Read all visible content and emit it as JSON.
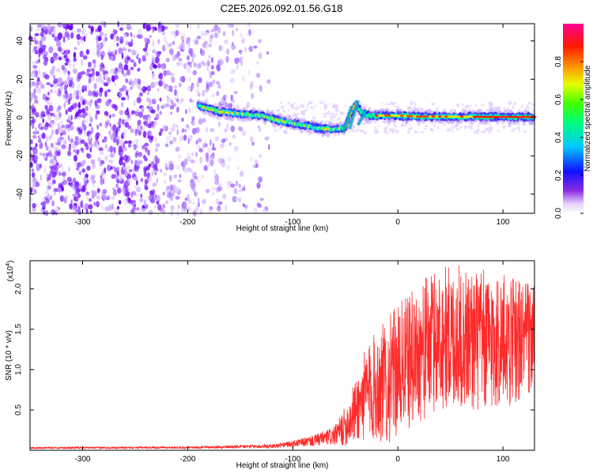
{
  "page": {
    "title": "C2E5.2026.092.01.56.G18"
  },
  "colors": {
    "snr_line": "#ff2a2a",
    "background_scatter": "#7a1fff",
    "ridge": "#ff0000"
  },
  "chart_data": [
    {
      "type": "heatmap",
      "title": "C2E5.2026.092.01.56.G18",
      "xlabel": "Height of straight line (km)",
      "ylabel": "Frequency (Hz)",
      "xlim": [
        -350,
        130
      ],
      "ylim": [
        -50,
        49
      ],
      "x_ticks": [
        -300,
        -200,
        -100,
        0,
        100
      ],
      "x_tick_labels": [
        "-300",
        "-200",
        "-100",
        "0",
        "100"
      ],
      "y_ticks": [
        -40,
        -20,
        0,
        20,
        40
      ],
      "y_tick_labels": [
        "-40",
        "-20",
        "0",
        "20",
        "40"
      ],
      "colorbar": {
        "label": "Normalized spectral amplitude",
        "range": [
          0.0,
          1.0
        ],
        "ticks": [
          0.0,
          0.2,
          0.4,
          0.6,
          0.8
        ],
        "tick_labels": [
          "0.0",
          "0.2",
          "0.4",
          "0.6",
          "0.8"
        ]
      },
      "ridge": {
        "description": "Doppler frequency ridge",
        "x": [
          -190,
          -170,
          -150,
          -130,
          -110,
          -100,
          -90,
          -80,
          -70,
          -60,
          -50,
          -45,
          -40,
          -35,
          -30,
          -20,
          0,
          20,
          50,
          100,
          130
        ],
        "y": [
          6,
          3,
          2,
          1,
          -2,
          -3,
          -4,
          -5,
          -6,
          -6,
          -5,
          2,
          7,
          3,
          1,
          1,
          1,
          0.5,
          0.5,
          0.3,
          0.3
        ]
      }
    },
    {
      "type": "line",
      "xlabel": "Height of straight line (km)",
      "ylabel": "SNR (10 * v/v)",
      "y_multiplier": "(x10",
      "y_multiplier_exp": "4",
      "y_multiplier_close": ")",
      "xlim": [
        -350,
        130
      ],
      "ylim": [
        0,
        23500
      ],
      "x_ticks": [
        -300,
        -200,
        -100,
        0,
        100
      ],
      "x_tick_labels": [
        "-300",
        "-200",
        "-100",
        "0",
        "100"
      ],
      "y_ticks": [
        5000,
        10000,
        15000,
        20000
      ],
      "y_tick_labels": [
        "0.5",
        "1.0",
        "1.5",
        "2.0"
      ],
      "series": [
        {
          "name": "SNR",
          "envelope_x": [
            -350,
            -200,
            -120,
            -100,
            -80,
            -60,
            -50,
            -40,
            -30,
            -20,
            -10,
            0,
            10,
            20,
            30,
            40,
            60,
            80,
            100,
            130
          ],
          "mean": [
            300,
            350,
            500,
            800,
            1200,
            1800,
            3000,
            5000,
            7000,
            8000,
            8500,
            10000,
            11000,
            12000,
            13000,
            14000,
            14000,
            13500,
            13500,
            14000
          ],
          "spread": [
            100,
            120,
            250,
            400,
            700,
            1200,
            2500,
            4000,
            6000,
            7000,
            8000,
            8000,
            8500,
            8500,
            9000,
            9000,
            9000,
            9000,
            8500,
            7000
          ]
        }
      ]
    }
  ]
}
